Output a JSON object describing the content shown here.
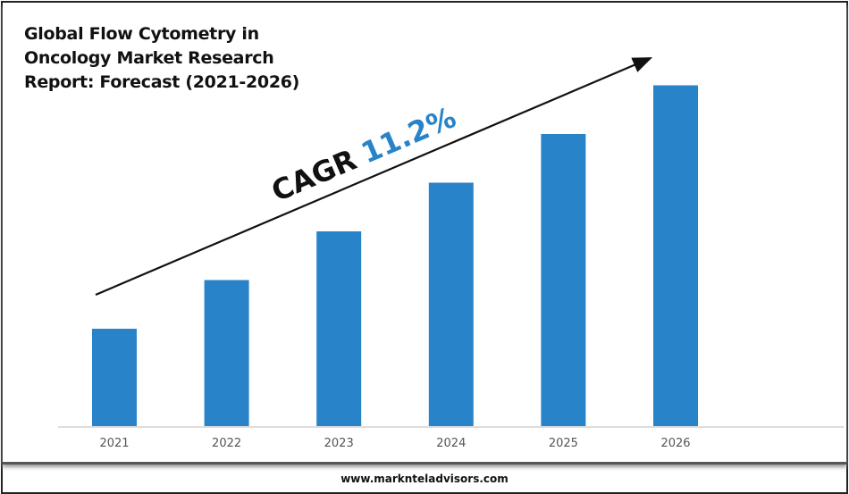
{
  "chart_data": {
    "type": "bar",
    "title": "Global Flow Cytometry in Oncology Market Research Report: Forecast (2021-2026)",
    "title_lines": [
      "Global Flow Cytometry in",
      "Oncology Market Research",
      "Report: Forecast (2021-2026)"
    ],
    "categories": [
      "2021",
      "2022",
      "2023",
      "2024",
      "2025",
      "2026"
    ],
    "values": [
      1.0,
      1.5,
      2.0,
      2.5,
      3.0,
      3.5
    ],
    "value_note_units": "relative (no value axis printed)",
    "xlabel": "",
    "ylabel": "",
    "ylim": [
      0,
      3.6
    ],
    "grid": false,
    "bar_color": "#2983c8",
    "annotation": {
      "prefix": "CAGR",
      "value": "11.2%",
      "value_color": "#2983c8",
      "trend_arrow": true
    }
  },
  "footer": {
    "website": "www.marknteladvisors.com"
  }
}
